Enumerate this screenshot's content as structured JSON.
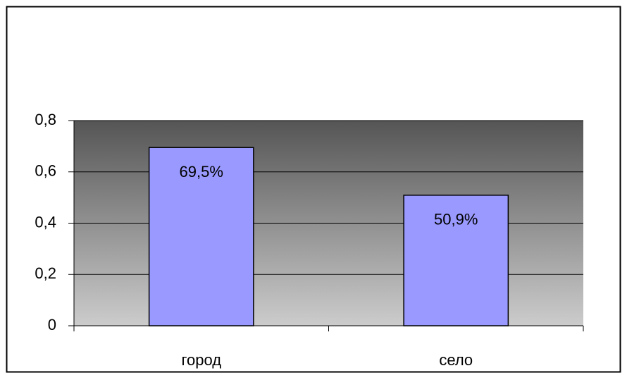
{
  "chart_data": {
    "type": "bar",
    "categories": [
      "город",
      "село"
    ],
    "values": [
      0.695,
      0.509
    ],
    "value_labels": [
      "69,5%",
      "50,9%"
    ],
    "color": "#9999ff",
    "ylim": [
      0,
      0.8
    ],
    "yticks": [
      0,
      {
        "value": 0.2,
        "label": "0,2"
      },
      {
        "value": 0.4,
        "label": "0,4"
      },
      {
        "value": 0.6,
        "label": "0,6"
      },
      {
        "value": 0.8,
        "label": "0,8"
      }
    ],
    "grid": true
  }
}
